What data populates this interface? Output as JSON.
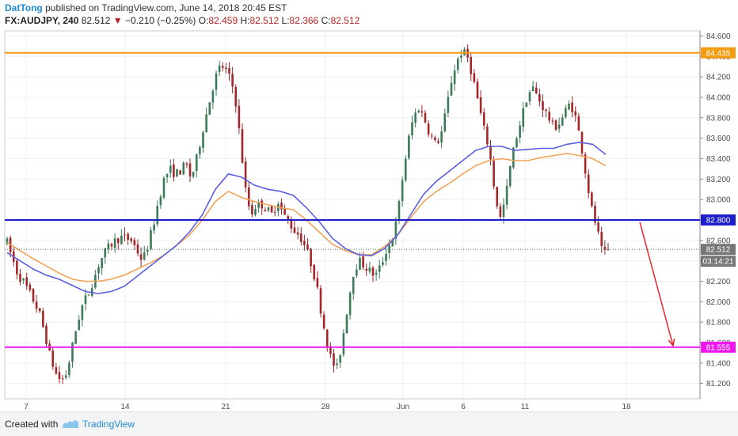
{
  "header": {
    "author": "DatTong",
    "published_text": "published on TradingView.com, June 14, 2018 20:45 EST"
  },
  "quote": {
    "symbol": "FX:AUDJPY, 240",
    "last": "82.512",
    "change_arrow": "▼",
    "change": "−0.210 (−0.25%)",
    "o_label": "O:",
    "o": "82.459",
    "h_label": "H:",
    "h": "82.512",
    "l_label": "L:",
    "l": "82.366",
    "c_label": "C:",
    "c": "82.512"
  },
  "footer": {
    "created_with": "Created with",
    "brand": "TradingView"
  },
  "colors": {
    "candle_up": "#3d7a58",
    "candle_down": "#a3262a",
    "ma_fast": "#5b5fe0",
    "ma_slow": "#f0a45a",
    "resistance": "#f39c12",
    "mid_level": "#1d1ec9",
    "support": "#ee18ee",
    "forecast_arrow": "#e8262c",
    "last_price": "#666666"
  },
  "chart_data": {
    "type": "candlestick",
    "symbol": "FX:AUDJPY",
    "timeframe": "240",
    "y_axis": {
      "range": [
        81.05,
        84.65
      ],
      "ticks": [
        "84.600",
        "84.400",
        "84.200",
        "84.000",
        "83.800",
        "83.600",
        "83.400",
        "83.200",
        "83.000",
        "82.800",
        "82.600",
        "82.400",
        "82.200",
        "82.000",
        "81.800",
        "81.600",
        "81.400",
        "81.200"
      ]
    },
    "x_axis": {
      "tick_labels": [
        "7",
        "14",
        "21",
        "28",
        "Jun",
        "6",
        "11",
        "18"
      ]
    },
    "levels": [
      {
        "name": "resistance",
        "value": 84.435,
        "label": "84.435",
        "color": "#f39c12"
      },
      {
        "name": "mid",
        "value": 82.8,
        "label": "82.800",
        "color": "#1d1ec9"
      },
      {
        "name": "support",
        "value": 81.555,
        "label": "81.555",
        "color": "#ee18ee"
      }
    ],
    "last_price": {
      "value": 82.512,
      "label": "82.512",
      "countdown": "03:14:21"
    },
    "forecast": {
      "from": 82.78,
      "to": 81.57,
      "direction": "down"
    },
    "path": [
      82.58,
      82.42,
      82.26,
      82.2,
      82.1,
      82.0,
      81.88,
      81.68,
      81.45,
      81.3,
      81.22,
      81.3,
      81.55,
      81.8,
      81.98,
      82.08,
      82.22,
      82.38,
      82.48,
      82.55,
      82.6,
      82.63,
      82.62,
      82.6,
      82.5,
      82.4,
      82.55,
      82.75,
      83.0,
      83.2,
      83.3,
      83.25,
      83.28,
      83.35,
      83.2,
      83.4,
      83.65,
      83.88,
      84.1,
      84.28,
      84.3,
      84.2,
      84.05,
      83.6,
      83.1,
      82.85,
      82.95,
      82.95,
      82.9,
      82.85,
      83.0,
      82.85,
      82.78,
      82.7,
      82.65,
      82.55,
      82.4,
      82.2,
      81.9,
      81.62,
      81.4,
      81.35,
      81.65,
      82.0,
      82.3,
      82.4,
      82.35,
      82.3,
      82.25,
      82.35,
      82.5,
      82.6,
      82.8,
      83.2,
      83.55,
      83.8,
      83.9,
      83.8,
      83.65,
      83.55,
      83.6,
      83.85,
      84.15,
      84.35,
      84.45,
      84.4,
      84.2,
      83.95,
      83.7,
      83.5,
      83.1,
      82.8,
      83.0,
      83.35,
      83.6,
      83.8,
      84.0,
      84.1,
      84.0,
      83.9,
      83.8,
      83.7,
      83.75,
      83.85,
      83.95,
      83.8,
      83.55,
      83.2,
      82.9,
      82.7,
      82.45,
      82.5
    ],
    "ma_fast": [
      82.48,
      82.4,
      82.32,
      82.26,
      82.22,
      82.16,
      82.1,
      82.08,
      82.1,
      82.15,
      82.25,
      82.35,
      82.45,
      82.55,
      82.68,
      82.85,
      83.1,
      83.25,
      83.22,
      83.14,
      83.1,
      83.08,
      83.04,
      82.92,
      82.78,
      82.62,
      82.52,
      82.46,
      82.45,
      82.52,
      82.65,
      82.85,
      83.05,
      83.18,
      83.28,
      83.38,
      83.48,
      83.52,
      83.52,
      83.48,
      83.49,
      83.5,
      83.5,
      83.54,
      83.56,
      83.54,
      83.44
    ],
    "ma_slow": [
      82.58,
      82.5,
      82.42,
      82.35,
      82.28,
      82.22,
      82.2,
      82.2,
      82.22,
      82.26,
      82.32,
      82.38,
      82.45,
      82.55,
      82.65,
      82.8,
      82.98,
      83.08,
      83.02,
      82.98,
      82.95,
      82.92,
      82.9,
      82.8,
      82.68,
      82.56,
      82.5,
      82.46,
      82.46,
      82.54,
      82.65,
      82.82,
      82.98,
      83.08,
      83.16,
      83.25,
      83.33,
      83.38,
      83.4,
      83.38,
      83.38,
      83.41,
      83.43,
      83.45,
      83.43,
      83.4,
      83.33
    ]
  }
}
